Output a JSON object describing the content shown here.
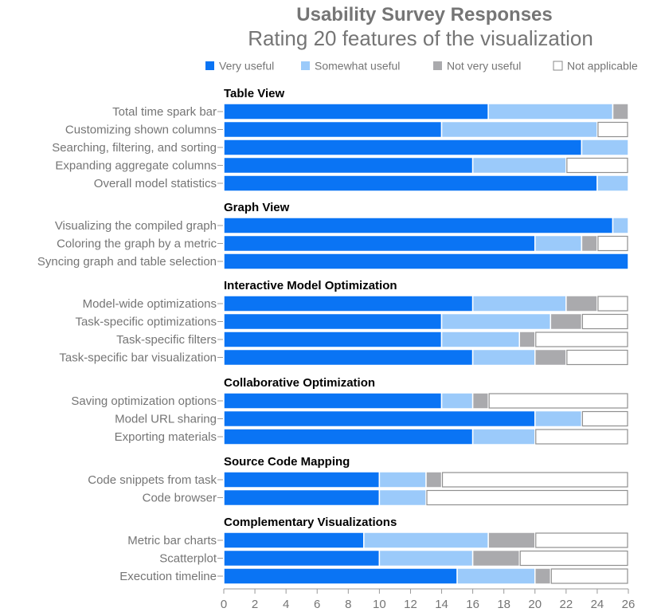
{
  "chart_data": {
    "type": "bar",
    "orientation": "horizontal",
    "stacked": true,
    "title": "Usability Survey Responses",
    "subtitle": "Rating 20 features of the visualization",
    "xlim": [
      0,
      26
    ],
    "xticks": [
      0,
      2,
      4,
      6,
      8,
      10,
      12,
      14,
      16,
      18,
      20,
      22,
      24,
      26
    ],
    "legend_position": "top-right",
    "series": [
      {
        "name": "Very useful",
        "color": "#0a74f4",
        "style": "filled"
      },
      {
        "name": "Somewhat useful",
        "color": "#9bcafa",
        "style": "filled"
      },
      {
        "name": "Not very useful",
        "color": "#aaaaad",
        "style": "filled"
      },
      {
        "name": "Not applicable",
        "color": "#ffffff",
        "style": "outline"
      }
    ],
    "groups": [
      {
        "name": "Table View",
        "features": [
          {
            "label": "Total time spark bar",
            "values": [
              17,
              8,
              1,
              0
            ]
          },
          {
            "label": "Customizing shown columns",
            "values": [
              14,
              10,
              0,
              2
            ]
          },
          {
            "label": "Searching, filtering, and sorting",
            "values": [
              23,
              3,
              0,
              0
            ]
          },
          {
            "label": "Expanding aggregate columns",
            "values": [
              16,
              6,
              0,
              4
            ]
          },
          {
            "label": "Overall model statistics",
            "values": [
              24,
              2,
              0,
              0
            ]
          }
        ]
      },
      {
        "name": "Graph View",
        "features": [
          {
            "label": "Visualizing the compiled graph",
            "values": [
              25,
              1,
              0,
              0
            ]
          },
          {
            "label": "Coloring the graph by a metric",
            "values": [
              20,
              3,
              1,
              2
            ]
          },
          {
            "label": "Syncing graph and table selection",
            "values": [
              26,
              0,
              0,
              0
            ]
          }
        ]
      },
      {
        "name": "Interactive Model Optimization",
        "features": [
          {
            "label": "Model-wide optimizations",
            "values": [
              16,
              6,
              2,
              2
            ]
          },
          {
            "label": "Task-specific optimizations",
            "values": [
              14,
              7,
              2,
              3
            ]
          },
          {
            "label": "Task-specific filters",
            "values": [
              14,
              5,
              1,
              6
            ]
          },
          {
            "label": "Task-specific bar visualization",
            "values": [
              16,
              4,
              2,
              4
            ]
          }
        ]
      },
      {
        "name": "Collaborative Optimization",
        "features": [
          {
            "label": "Saving optimization options",
            "values": [
              14,
              2,
              1,
              9
            ]
          },
          {
            "label": "Model URL sharing",
            "values": [
              20,
              3,
              0,
              3
            ]
          },
          {
            "label": "Exporting materials",
            "values": [
              16,
              4,
              0,
              6
            ]
          }
        ]
      },
      {
        "name": "Source Code Mapping",
        "features": [
          {
            "label": "Code snippets from task",
            "values": [
              10,
              3,
              1,
              12
            ]
          },
          {
            "label": "Code browser",
            "values": [
              10,
              3,
              0,
              13
            ]
          }
        ]
      },
      {
        "name": "Complementary Visualizations",
        "features": [
          {
            "label": "Metric bar charts",
            "values": [
              9,
              8,
              3,
              6
            ]
          },
          {
            "label": "Scatterplot",
            "values": [
              10,
              6,
              3,
              7
            ]
          },
          {
            "label": "Execution timeline",
            "values": [
              15,
              5,
              1,
              5
            ]
          }
        ]
      }
    ]
  }
}
